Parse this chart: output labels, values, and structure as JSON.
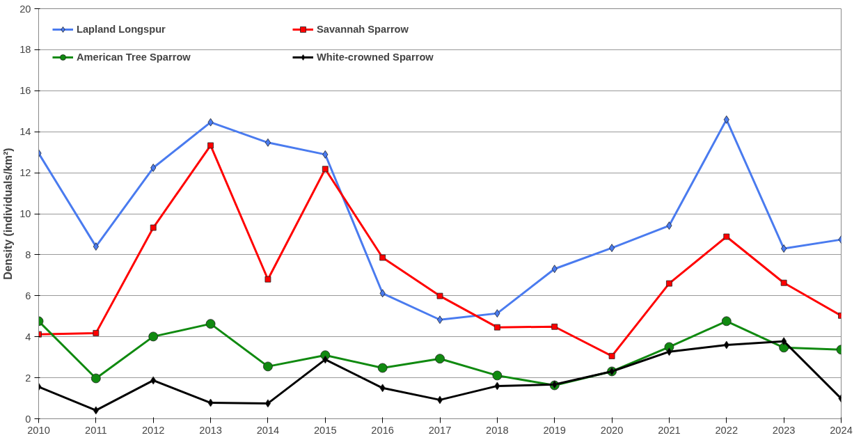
{
  "chart_data": {
    "type": "line",
    "ylabel": "Density (individuals/km²)",
    "x": [
      2010,
      2011,
      2012,
      2013,
      2014,
      2015,
      2016,
      2017,
      2018,
      2019,
      2020,
      2021,
      2022,
      2023,
      2024
    ],
    "xlim": [
      2010,
      2024
    ],
    "xticks": [
      2010,
      2011,
      2012,
      2013,
      2014,
      2015,
      2016,
      2017,
      2018,
      2019,
      2020,
      2021,
      2022,
      2023,
      2024
    ],
    "ylim": [
      0,
      20
    ],
    "yticks": [
      0,
      2,
      4,
      6,
      8,
      10,
      12,
      14,
      16,
      18,
      20
    ],
    "grid": "y",
    "legend": "top left",
    "line_style": "solid",
    "series": [
      {
        "name": "Lapland Longspur",
        "color": "#4a7bef",
        "marker": "diamond",
        "values": [
          12.95,
          8.4,
          12.24,
          14.46,
          13.47,
          12.89,
          6.12,
          4.83,
          5.14,
          7.31,
          8.33,
          9.42,
          14.59,
          8.3,
          8.74
        ]
      },
      {
        "name": "Savannah Sparrow",
        "color": "#ff0000",
        "marker": "square",
        "values": [
          4.12,
          4.18,
          9.32,
          13.33,
          6.8,
          12.18,
          7.86,
          5.99,
          4.46,
          4.49,
          3.06,
          6.6,
          8.88,
          6.63,
          5.03
        ]
      },
      {
        "name": "American Tree Sparrow",
        "color": "#108a10",
        "marker": "circle",
        "values": [
          4.76,
          1.97,
          4.01,
          4.63,
          2.55,
          3.1,
          2.48,
          2.93,
          2.11,
          1.63,
          2.31,
          3.5,
          4.76,
          3.47,
          3.37
        ]
      },
      {
        "name": "White-crowned Sparrow",
        "color": "#000000",
        "marker": "diamond",
        "values": [
          1.56,
          0.41,
          1.87,
          0.78,
          0.75,
          2.89,
          1.5,
          0.92,
          1.6,
          1.67,
          2.31,
          3.27,
          3.6,
          3.78,
          0.99
        ]
      }
    ]
  }
}
